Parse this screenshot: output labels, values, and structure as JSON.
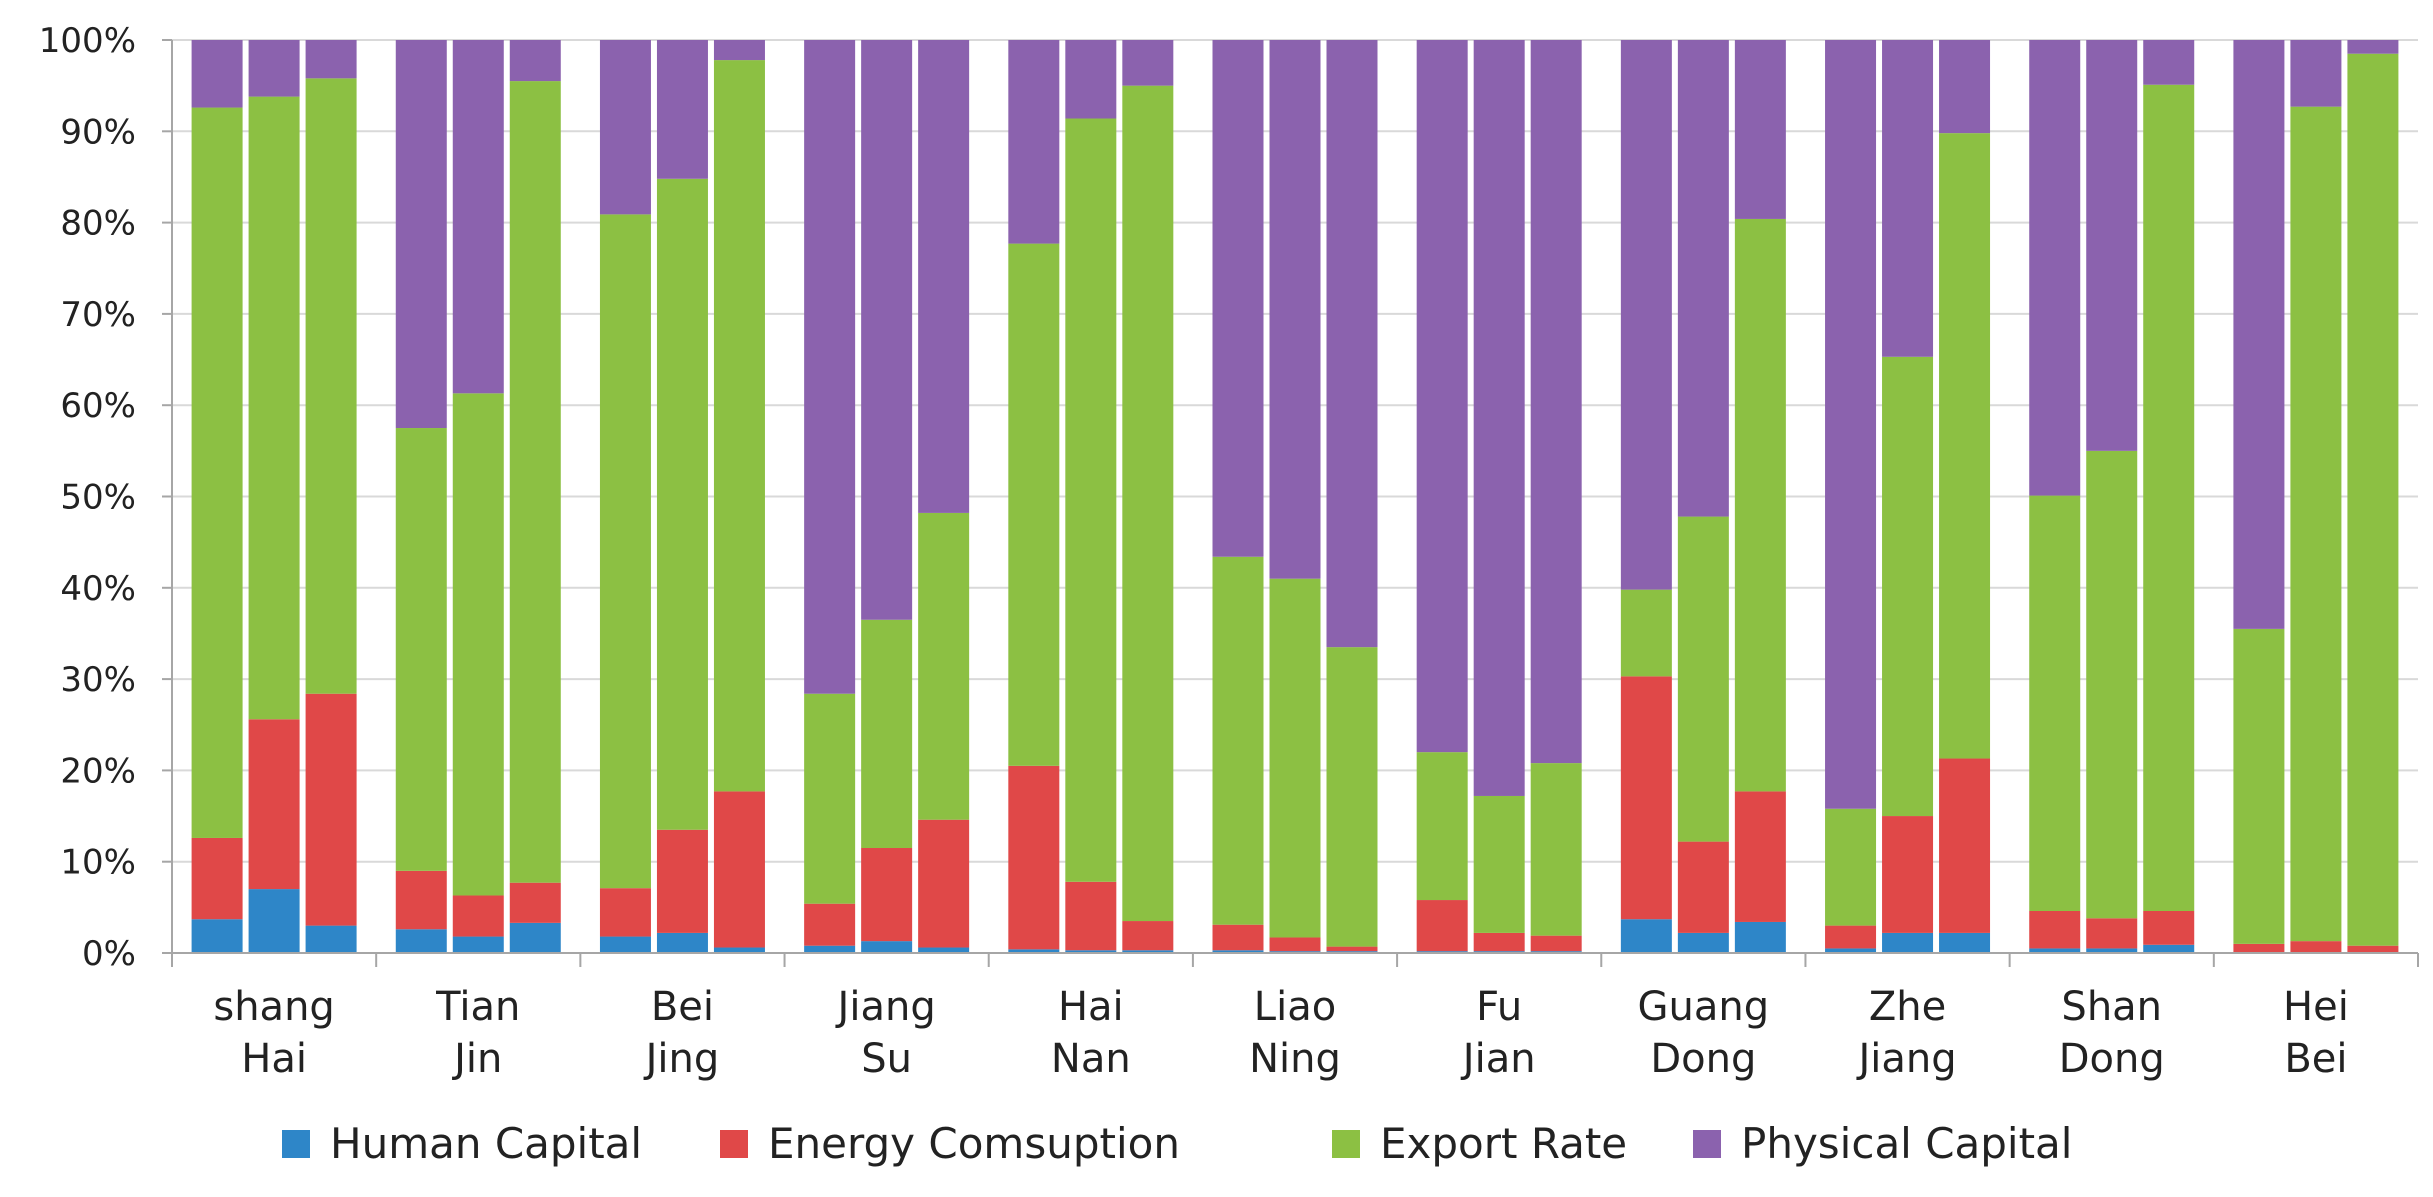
{
  "chart_data": {
    "type": "bar",
    "stacked": "percent",
    "title": "",
    "xlabel": "",
    "ylabel": "",
    "ylim": [
      0,
      100
    ],
    "grid": true,
    "legend_position": "bottom",
    "y_ticks": [
      "0%",
      "10%",
      "20%",
      "30%",
      "40%",
      "50%",
      "60%",
      "70%",
      "80%",
      "90%",
      "100%"
    ],
    "groups": [
      {
        "line1": "shang",
        "line2": "Hai"
      },
      {
        "line1": "Tian",
        "line2": "Jin"
      },
      {
        "line1": "Bei",
        "line2": "Jing"
      },
      {
        "line1": "Jiang",
        "line2": "Su"
      },
      {
        "line1": "Hai",
        "line2": "Nan"
      },
      {
        "line1": "Liao",
        "line2": "Ning"
      },
      {
        "line1": "Fu",
        "line2": "Jian"
      },
      {
        "line1": "Guang",
        "line2": "Dong"
      },
      {
        "line1": "Zhe",
        "line2": "Jiang"
      },
      {
        "line1": "Shan",
        "line2": "Dong"
      },
      {
        "line1": "Hei",
        "line2": "Bei"
      }
    ],
    "bars_per_group": 3,
    "series": [
      {
        "name": "Human Capital",
        "color": "#2E86C8",
        "values": [
          3.7,
          7.0,
          3.0,
          2.6,
          1.8,
          3.3,
          1.8,
          2.2,
          0.6,
          0.8,
          1.3,
          0.6,
          0.4,
          0.3,
          0.3,
          0.3,
          0.2,
          0.2,
          0.2,
          0.2,
          0.2,
          3.7,
          2.2,
          3.4,
          0.5,
          2.2,
          2.2,
          0.5,
          0.5,
          0.9,
          0.0,
          0.0,
          0.0
        ]
      },
      {
        "name": "Energy Comsuption",
        "color": "#E04848",
        "values": [
          8.9,
          18.6,
          25.4,
          6.4,
          4.5,
          4.4,
          5.3,
          11.3,
          17.1,
          4.6,
          10.2,
          14.0,
          20.1,
          7.5,
          3.2,
          2.8,
          1.5,
          0.5,
          5.6,
          2.0,
          1.7,
          26.6,
          10.0,
          14.3,
          2.5,
          12.8,
          19.1,
          4.1,
          3.3,
          3.7,
          1.0,
          1.3,
          0.8
        ]
      },
      {
        "name": "Export Rate",
        "color": "#8CC043",
        "values": [
          80.0,
          68.2,
          67.4,
          48.5,
          55.0,
          87.8,
          73.8,
          71.3,
          80.1,
          23.0,
          25.0,
          33.6,
          57.2,
          83.6,
          91.5,
          40.3,
          39.3,
          32.8,
          16.2,
          15.0,
          18.9,
          9.5,
          35.6,
          62.7,
          12.8,
          50.3,
          68.5,
          45.5,
          51.2,
          90.5,
          34.5,
          91.4,
          97.7
        ]
      },
      {
        "name": "Physical Capital",
        "color": "#8B62AE",
        "values": [
          7.4,
          6.2,
          4.2,
          42.5,
          38.7,
          4.5,
          19.1,
          15.2,
          2.2,
          71.6,
          63.5,
          51.8,
          22.3,
          8.6,
          5.0,
          56.6,
          59.0,
          66.5,
          78.0,
          82.8,
          79.2,
          60.2,
          52.2,
          19.6,
          84.2,
          34.7,
          10.2,
          49.9,
          45.0,
          4.9,
          64.5,
          7.3,
          1.5
        ]
      }
    ]
  }
}
